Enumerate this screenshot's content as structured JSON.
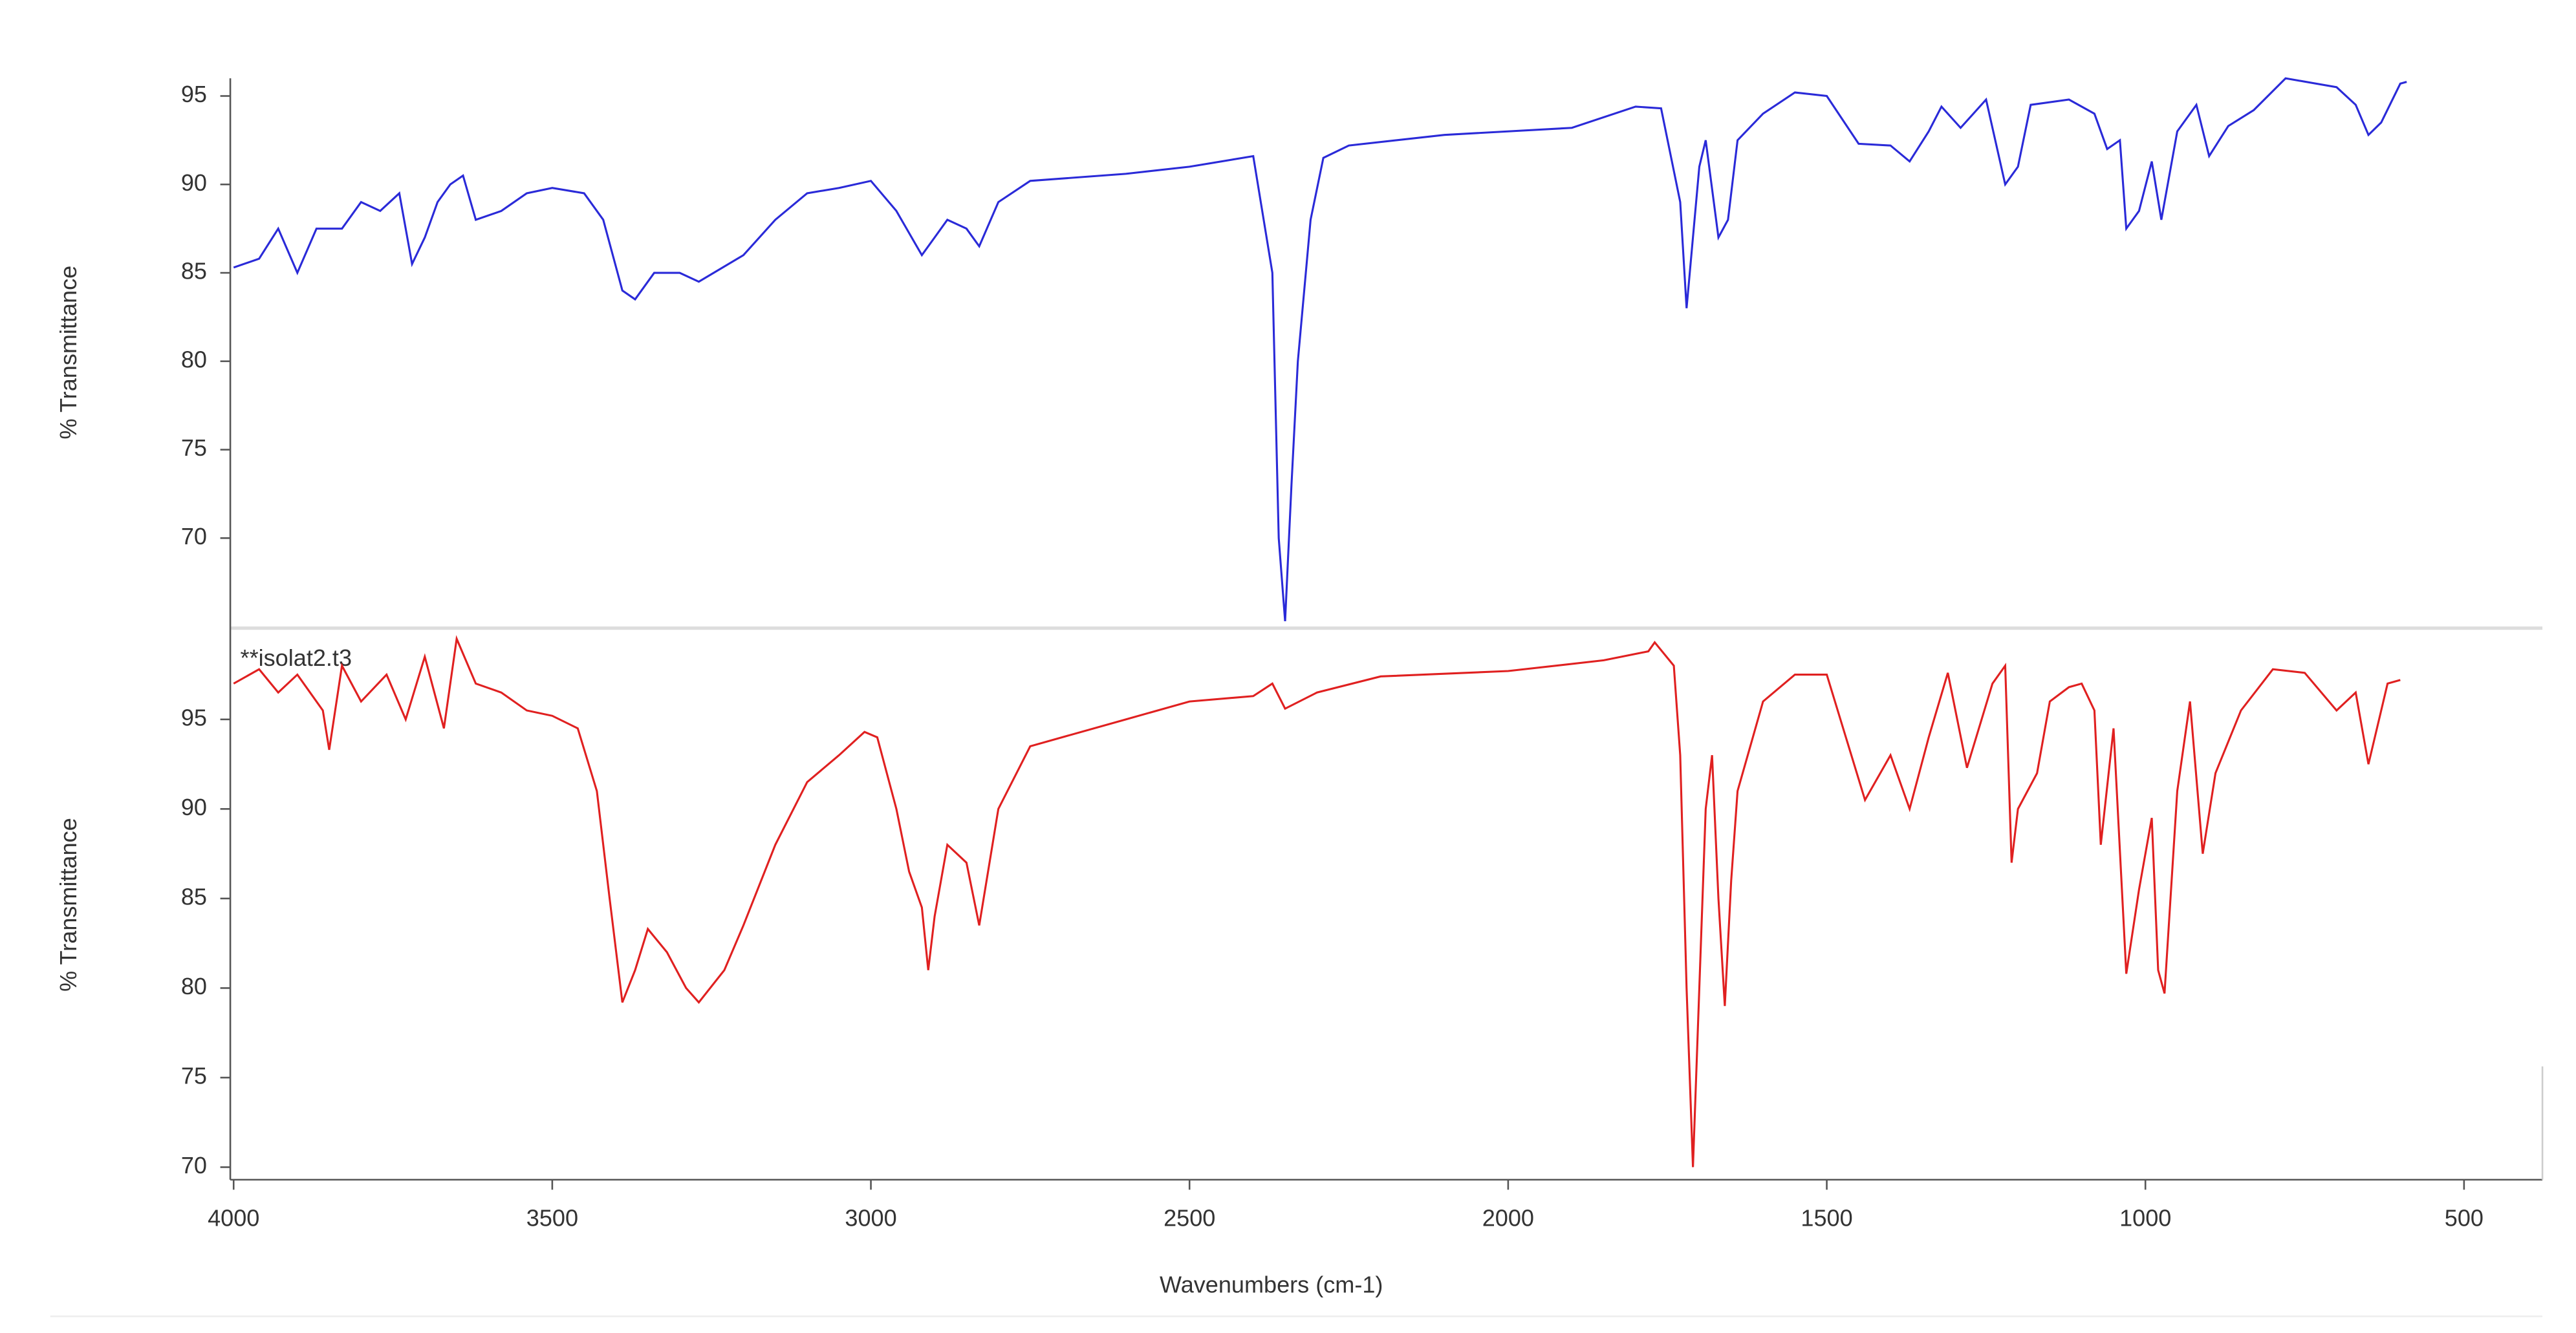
{
  "chart_data": [
    {
      "type": "line",
      "y_label": "% Transmittance",
      "x": [
        4000,
        3960,
        3930,
        3900,
        3870,
        3830,
        3800,
        3770,
        3740,
        3720,
        3700,
        3680,
        3660,
        3640,
        3620,
        3580,
        3540,
        3500,
        3450,
        3420,
        3390,
        3370,
        3340,
        3300,
        3270,
        3200,
        3150,
        3100,
        3050,
        3000,
        2960,
        2920,
        2900,
        2880,
        2850,
        2830,
        2800,
        2750,
        2600,
        2500,
        2400,
        2370,
        2360,
        2350,
        2340,
        2330,
        2310,
        2290,
        2250,
        2100,
        1900,
        1800,
        1760,
        1730,
        1720,
        1700,
        1690,
        1670,
        1655,
        1640,
        1600,
        1550,
        1500,
        1450,
        1400,
        1370,
        1340,
        1320,
        1290,
        1250,
        1220,
        1200,
        1180,
        1120,
        1080,
        1060,
        1040,
        1030,
        1010,
        990,
        975,
        950,
        920,
        900,
        870,
        830,
        780,
        700,
        670,
        650,
        630,
        600,
        590
      ],
      "series": [
        {
          "color": "#2a2ad8",
          "values": [
            85.3,
            85.8,
            87.5,
            85,
            87.5,
            87.5,
            89,
            88.5,
            89.5,
            85.5,
            87,
            89,
            90,
            90.5,
            88,
            88.5,
            89.5,
            89.8,
            89.5,
            88,
            84,
            83.5,
            85,
            85,
            84.5,
            86,
            88,
            89.5,
            89.8,
            90.2,
            88.5,
            86,
            87,
            88,
            87.5,
            86.5,
            89,
            90.2,
            90.6,
            91,
            91.6,
            85,
            70,
            65.3,
            73,
            80,
            88,
            91.5,
            92.2,
            92.8,
            93.2,
            94.4,
            94.3,
            89,
            83,
            91,
            92.5,
            87,
            88,
            92.5,
            94,
            95.2,
            95,
            92.3,
            92.2,
            91.3,
            93,
            94.4,
            93.2,
            94.8,
            90,
            91,
            94.5,
            94.8,
            94,
            92,
            92.5,
            87.5,
            88.5,
            91.3,
            88,
            93,
            94.5,
            91.6,
            93.3,
            94.2,
            96,
            95.5,
            94.5,
            92.8,
            93.5,
            95.7,
            95.8
          ]
        }
      ],
      "xlim": [
        4000,
        377
      ],
      "ylim": [
        65,
        96
      ],
      "yticks": [
        70,
        75,
        80,
        85,
        90,
        95
      ]
    },
    {
      "type": "line",
      "y_label": "% Transmittance",
      "x_label": "Wavenumbers (cm-1)",
      "annotation": "**isolat2.t3",
      "x": [
        4000,
        3960,
        3930,
        3900,
        3860,
        3850,
        3830,
        3800,
        3760,
        3730,
        3700,
        3670,
        3650,
        3620,
        3580,
        3540,
        3500,
        3460,
        3430,
        3410,
        3390,
        3370,
        3350,
        3320,
        3290,
        3270,
        3230,
        3200,
        3150,
        3100,
        3050,
        3010,
        2990,
        2960,
        2940,
        2920,
        2910,
        2900,
        2880,
        2850,
        2830,
        2800,
        2750,
        2600,
        2500,
        2400,
        2370,
        2350,
        2300,
        2200,
        2000,
        1850,
        1780,
        1770,
        1740,
        1730,
        1720,
        1710,
        1700,
        1690,
        1680,
        1670,
        1660,
        1650,
        1640,
        1600,
        1550,
        1500,
        1470,
        1440,
        1400,
        1370,
        1340,
        1310,
        1280,
        1240,
        1220,
        1210,
        1200,
        1170,
        1150,
        1120,
        1100,
        1080,
        1070,
        1050,
        1030,
        1010,
        990,
        980,
        970,
        950,
        930,
        910,
        890,
        850,
        800,
        750,
        700,
        670,
        650,
        620,
        600
      ],
      "series": [
        {
          "color": "#e02020",
          "values": [
            97,
            97.8,
            96.5,
            97.5,
            95.5,
            93.3,
            98,
            96,
            97.5,
            95,
            98.5,
            94.5,
            99.5,
            97,
            96.5,
            95.5,
            95.2,
            94.5,
            91,
            85,
            79.2,
            81,
            83.3,
            82,
            80,
            79.2,
            81,
            83.5,
            88,
            91.5,
            93,
            94.3,
            94,
            90,
            86.5,
            84.5,
            81,
            84,
            88,
            87,
            83.5,
            90,
            93.5,
            95,
            96,
            96.3,
            97,
            95.6,
            96.5,
            97.4,
            97.7,
            98.3,
            98.8,
            99.3,
            98,
            93,
            80,
            70,
            80,
            90,
            93,
            85,
            79,
            86,
            91,
            96,
            97.5,
            97.5,
            94,
            90.5,
            93,
            90,
            94,
            97.6,
            92.3,
            97,
            98,
            87,
            90,
            92,
            96,
            96.8,
            97,
            95.5,
            88,
            94.5,
            80.8,
            85.5,
            89.5,
            81,
            79.7,
            91,
            96,
            87.5,
            92,
            95.5,
            97.8,
            97.6,
            95.5,
            96.5,
            92.5,
            97,
            97.2
          ]
        }
      ],
      "xlim": [
        4000,
        377
      ],
      "ylim": [
        69.3,
        100
      ],
      "yticks": [
        70,
        75,
        80,
        85,
        90,
        95
      ],
      "xticks": [
        4000,
        3500,
        3000,
        2500,
        2000,
        1500,
        1000,
        500
      ]
    }
  ]
}
